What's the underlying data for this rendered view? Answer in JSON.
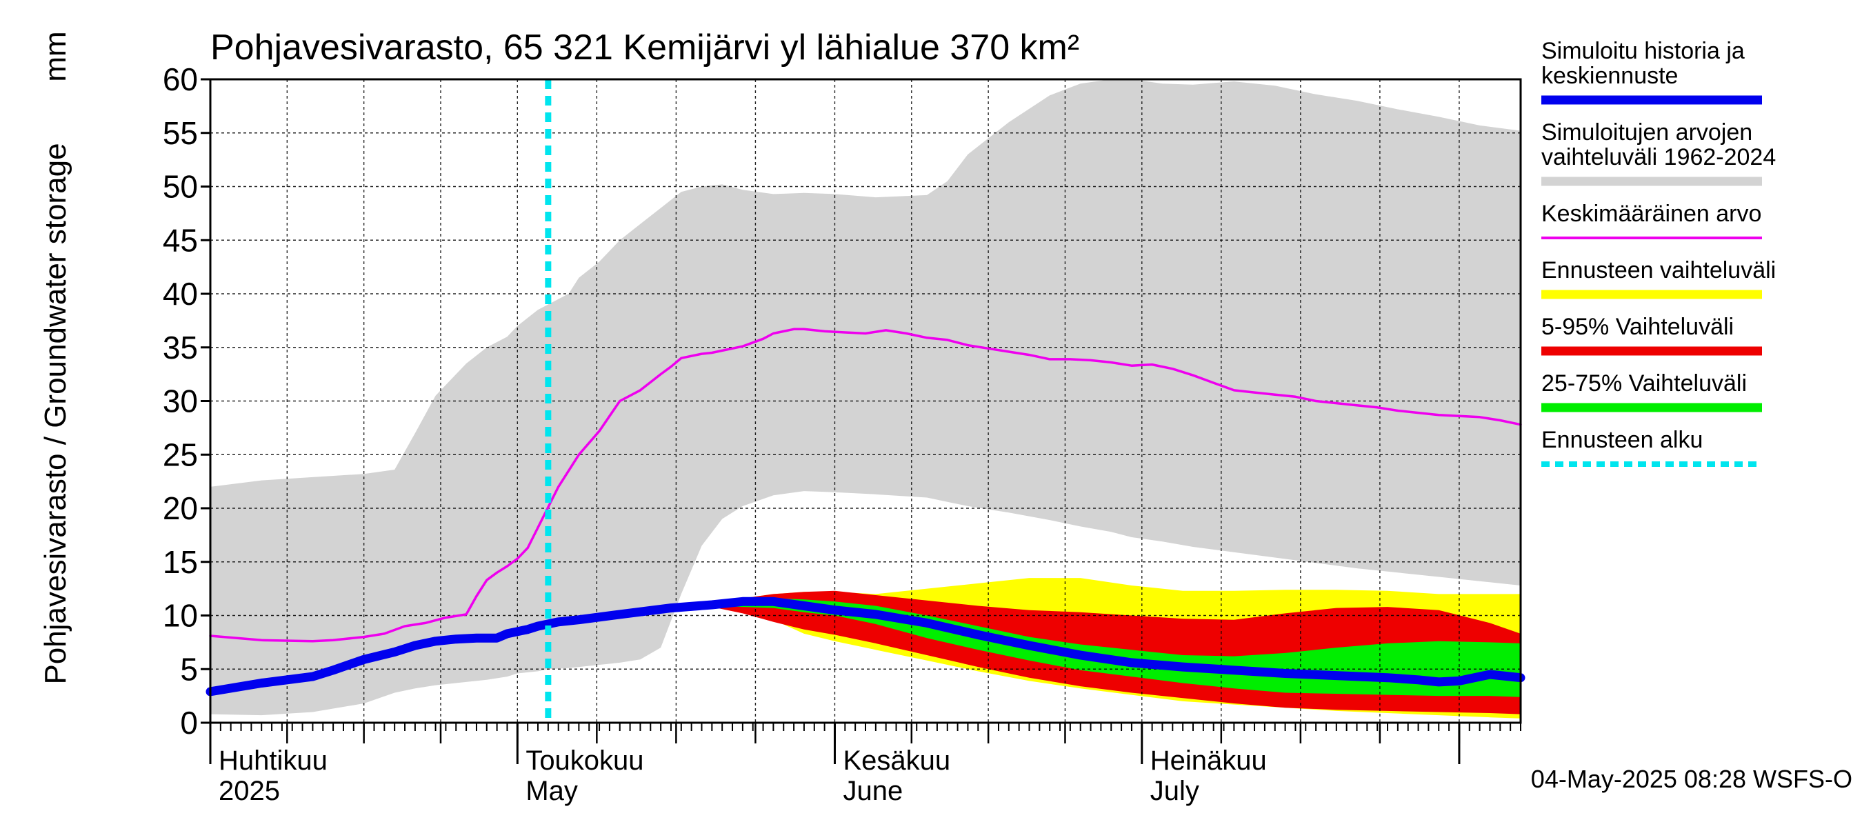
{
  "chart_data": {
    "type": "area",
    "title": "Pohjavesivarasto, 65 321 Kemijärvi yl lähialue 370 km²",
    "ylabel": "Pohjavesivarasto / Groundwater storage",
    "yunit": "mm",
    "ylim": [
      0,
      60
    ],
    "yticks": [
      0,
      5,
      10,
      15,
      20,
      25,
      30,
      35,
      40,
      45,
      50,
      55,
      60
    ],
    "xlim": [
      0,
      128
    ],
    "grid": true,
    "month_labels": [
      {
        "line1": "Huhtikuu",
        "line2": "2025",
        "x": 0
      },
      {
        "line1": "Toukokuu",
        "line2": "May",
        "x": 30
      },
      {
        "line1": "Kesäkuu",
        "line2": "June",
        "x": 61
      },
      {
        "line1": "Heinäkuu",
        "line2": "July",
        "x": 91
      }
    ],
    "month_starts": [
      0,
      30,
      61,
      91,
      122
    ],
    "forecast_start_x": 33,
    "timestamp": "04-May-2025 08:28 WSFS-O",
    "legend": [
      {
        "label": "Simuloitu historia ja keskiennuste",
        "lines": [
          "Simuloitu historia ja",
          "keskiennuste"
        ],
        "color": "#0000ee",
        "style": "thick"
      },
      {
        "label": "Simuloitujen arvojen vaihteluväli 1962-2024",
        "lines": [
          "Simuloitujen arvojen",
          "vaihteluväli 1962-2024"
        ],
        "color": "#d3d3d3",
        "style": "thick"
      },
      {
        "label": "Keskimääräinen arvo",
        "lines": [
          "Keskimääräinen arvo"
        ],
        "color": "#ee00ee",
        "style": "thin"
      },
      {
        "label": "Ennusteen vaihteluväli",
        "lines": [
          "Ennusteen vaihteluväli"
        ],
        "color": "#ffff00",
        "style": "thick"
      },
      {
        "label": "5-95% Vaihteluväli",
        "lines": [
          "5-95% Vaihteluväli"
        ],
        "color": "#ee0000",
        "style": "thick"
      },
      {
        "label": "25-75% Vaihteluväli",
        "lines": [
          "25-75% Vaihteluväli"
        ],
        "color": "#00ee00",
        "style": "thick"
      },
      {
        "label": "Ennusteen alku",
        "lines": [
          "Ennusteen alku"
        ],
        "color": "#00e5ee",
        "style": "dotted"
      }
    ],
    "series": [
      {
        "name": "Simuloitujen arvojen vaihteluväli 1962-2024",
        "kind": "band",
        "color": "#d3d3d3",
        "x": [
          0,
          5,
          10,
          15,
          18,
          20,
          22,
          25,
          27,
          29,
          30,
          32,
          33,
          35,
          36,
          38,
          40,
          42,
          44,
          46,
          48,
          50,
          52,
          55,
          58,
          61,
          65,
          70,
          72,
          74,
          78,
          82,
          85,
          88,
          90,
          93,
          96,
          100,
          104,
          108,
          112,
          116,
          120,
          124,
          128
        ],
        "lower": [
          0.8,
          0.7,
          1.0,
          1.8,
          2.8,
          3.2,
          3.5,
          3.8,
          4.0,
          4.3,
          4.6,
          4.8,
          5.0,
          5.1,
          5.2,
          5.4,
          5.6,
          5.9,
          7.0,
          12.0,
          16.5,
          19.0,
          20.2,
          21.2,
          21.6,
          21.5,
          21.3,
          21.0,
          20.6,
          20.2,
          19.6,
          18.9,
          18.3,
          17.8,
          17.3,
          16.9,
          16.4,
          15.9,
          15.4,
          14.9,
          14.4,
          14.0,
          13.6,
          13.2,
          12.8
        ],
        "upper": [
          22.0,
          22.6,
          22.9,
          23.2,
          23.6,
          27.0,
          30.5,
          33.5,
          35.0,
          36.0,
          37.0,
          38.5,
          39.0,
          40.0,
          41.5,
          43.0,
          45.0,
          46.5,
          48.0,
          49.5,
          50.0,
          50.2,
          49.7,
          49.3,
          49.4,
          49.3,
          49.0,
          49.2,
          50.5,
          53.0,
          56.0,
          58.5,
          59.6,
          60.0,
          60.0,
          59.6,
          59.5,
          59.8,
          59.4,
          58.6,
          58.0,
          57.2,
          56.5,
          55.7,
          55.2
        ]
      },
      {
        "name": "Ennusteen vaihteluväli",
        "kind": "band",
        "color": "#ffff00",
        "x": [
          49,
          52,
          55,
          58,
          61,
          65,
          70,
          75,
          80,
          85,
          90,
          95,
          100,
          105,
          110,
          115,
          120,
          125,
          128
        ],
        "lower": [
          10.8,
          10.5,
          9.6,
          8.3,
          7.6,
          6.8,
          5.8,
          4.8,
          3.9,
          3.2,
          2.6,
          2.0,
          1.7,
          1.4,
          1.1,
          0.9,
          0.7,
          0.5,
          0.4
        ],
        "upper": [
          11.3,
          11.6,
          12.0,
          12.2,
          12.2,
          12.0,
          12.5,
          13.0,
          13.5,
          13.5,
          12.8,
          12.3,
          12.3,
          12.4,
          12.4,
          12.3,
          12.0,
          12.0,
          12.0
        ]
      },
      {
        "name": "5-95% Vaihteluväli",
        "kind": "band",
        "color": "#ee0000",
        "x": [
          49,
          52,
          55,
          58,
          61,
          65,
          70,
          75,
          80,
          85,
          90,
          95,
          100,
          105,
          110,
          115,
          120,
          125,
          128
        ],
        "lower": [
          10.8,
          10.2,
          9.4,
          8.7,
          8.2,
          7.4,
          6.3,
          5.2,
          4.2,
          3.4,
          2.8,
          2.3,
          1.8,
          1.4,
          1.2,
          1.1,
          1.0,
          0.9,
          0.8
        ],
        "upper": [
          11.2,
          11.6,
          12.0,
          12.2,
          12.3,
          11.9,
          11.4,
          10.9,
          10.5,
          10.3,
          10.0,
          9.7,
          9.6,
          10.2,
          10.7,
          10.8,
          10.5,
          9.3,
          8.3
        ]
      },
      {
        "name": "25-75% Vaihteluväli",
        "kind": "band",
        "color": "#00ee00",
        "x": [
          49,
          52,
          55,
          58,
          61,
          65,
          70,
          75,
          80,
          85,
          90,
          95,
          100,
          105,
          110,
          115,
          120,
          125,
          128
        ],
        "lower": [
          10.9,
          10.8,
          10.7,
          10.3,
          10.0,
          9.2,
          7.9,
          6.8,
          5.8,
          4.9,
          4.3,
          3.7,
          3.2,
          2.8,
          2.7,
          2.6,
          2.5,
          2.5,
          2.4
        ],
        "upper": [
          11.0,
          11.3,
          11.6,
          11.5,
          11.3,
          10.9,
          10.0,
          9.0,
          8.0,
          7.3,
          6.8,
          6.3,
          6.2,
          6.5,
          7.0,
          7.4,
          7.6,
          7.5,
          7.4
        ]
      },
      {
        "name": "Simuloitu historia ja keskiennuste",
        "kind": "line",
        "color": "#0000ee",
        "width": 13,
        "x": [
          0,
          5,
          10,
          12,
          15,
          18,
          20,
          22,
          24,
          26,
          28,
          29,
          30,
          31,
          32,
          34,
          36,
          40,
          45,
          49,
          52,
          55,
          58,
          61,
          65,
          70,
          75,
          80,
          85,
          90,
          95,
          100,
          105,
          110,
          115,
          118,
          120,
          122,
          125,
          128
        ],
        "y": [
          2.9,
          3.7,
          4.3,
          4.9,
          5.9,
          6.6,
          7.2,
          7.6,
          7.8,
          7.9,
          7.9,
          8.3,
          8.5,
          8.7,
          9.0,
          9.4,
          9.6,
          10.1,
          10.7,
          11.0,
          11.3,
          11.3,
          10.9,
          10.5,
          10.1,
          9.3,
          8.2,
          7.2,
          6.3,
          5.6,
          5.2,
          4.9,
          4.6,
          4.4,
          4.2,
          4.0,
          3.8,
          3.9,
          4.5,
          4.2
        ]
      },
      {
        "name": "Keskimääräinen arvo",
        "kind": "line",
        "color": "#ee00ee",
        "width": 3.5,
        "x": [
          0,
          5,
          10,
          12,
          15,
          17,
          19,
          21,
          23,
          25,
          26,
          27,
          28,
          29,
          30,
          31,
          32,
          34,
          36,
          38,
          40,
          42,
          44,
          45,
          46,
          48,
          49,
          50,
          52,
          54,
          55,
          57,
          58,
          60,
          62,
          64,
          66,
          68,
          70,
          72,
          74,
          76,
          78,
          80,
          82,
          84,
          86,
          88,
          90,
          92,
          94,
          96,
          98,
          100,
          102,
          104,
          106,
          108,
          110,
          112,
          114,
          116,
          118,
          120,
          122,
          124,
          126,
          128
        ],
        "y": [
          8.1,
          7.7,
          7.6,
          7.7,
          8.0,
          8.3,
          9.0,
          9.3,
          9.8,
          10.1,
          11.8,
          13.3,
          14.0,
          14.6,
          15.3,
          16.3,
          18.2,
          22.0,
          25.0,
          27.2,
          30.0,
          31.0,
          32.5,
          33.2,
          34.0,
          34.4,
          34.5,
          34.7,
          35.1,
          35.8,
          36.3,
          36.7,
          36.7,
          36.5,
          36.4,
          36.3,
          36.6,
          36.3,
          35.9,
          35.7,
          35.2,
          34.9,
          34.6,
          34.3,
          33.9,
          33.9,
          33.8,
          33.6,
          33.3,
          33.4,
          33.0,
          32.4,
          31.7,
          31.0,
          30.8,
          30.6,
          30.4,
          30.0,
          29.8,
          29.6,
          29.4,
          29.1,
          28.9,
          28.7,
          28.6,
          28.5,
          28.2,
          27.8
        ]
      }
    ]
  }
}
